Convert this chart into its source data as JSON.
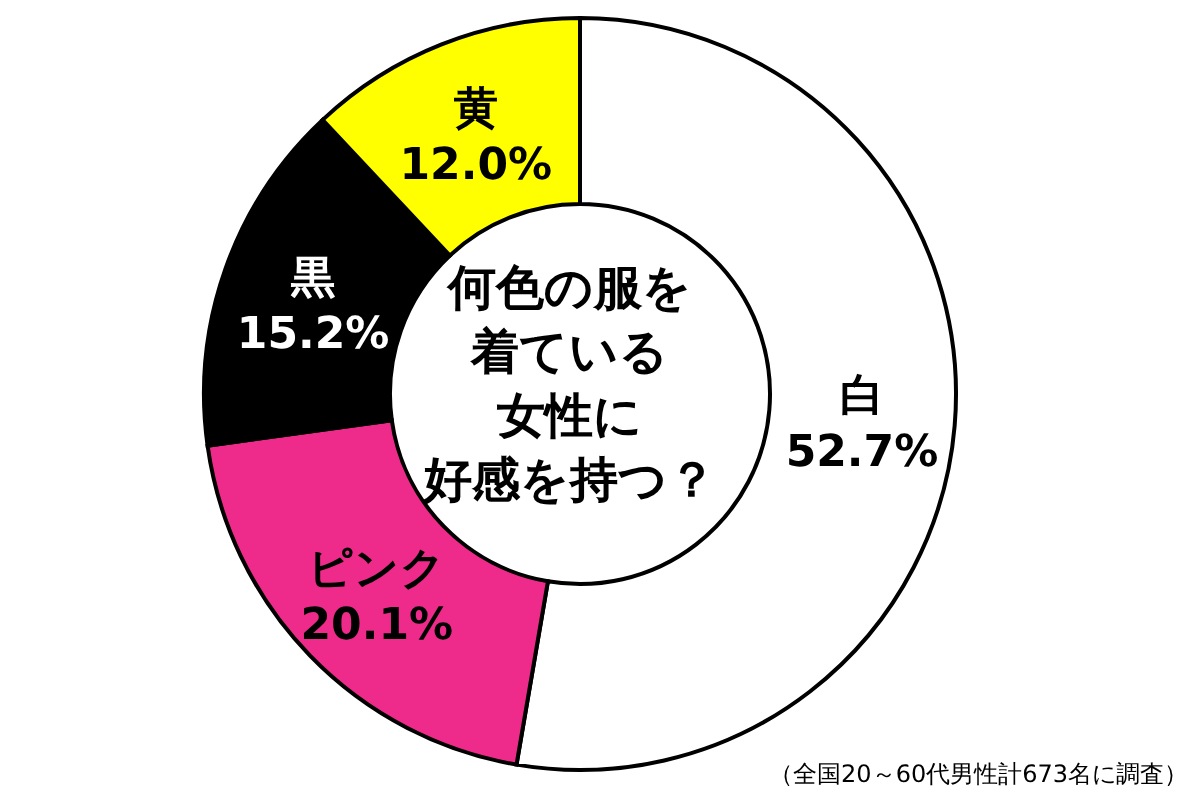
{
  "chart_data": {
    "type": "donut",
    "title": "何色の服を着ている女性に好感を持つ？",
    "categories": [
      "白",
      "ピンク",
      "黒",
      "黄"
    ],
    "values": [
      52.7,
      20.1,
      15.2,
      12.0
    ],
    "colors": [
      "#ffffff",
      "#ee2a8a",
      "#000000",
      "#ffff00"
    ],
    "value_labels": [
      "52.7%",
      "20.1%",
      "15.2%",
      "12.0%"
    ],
    "annotations": [
      "（全国20～60代男性計673名に調査）"
    ]
  }
}
